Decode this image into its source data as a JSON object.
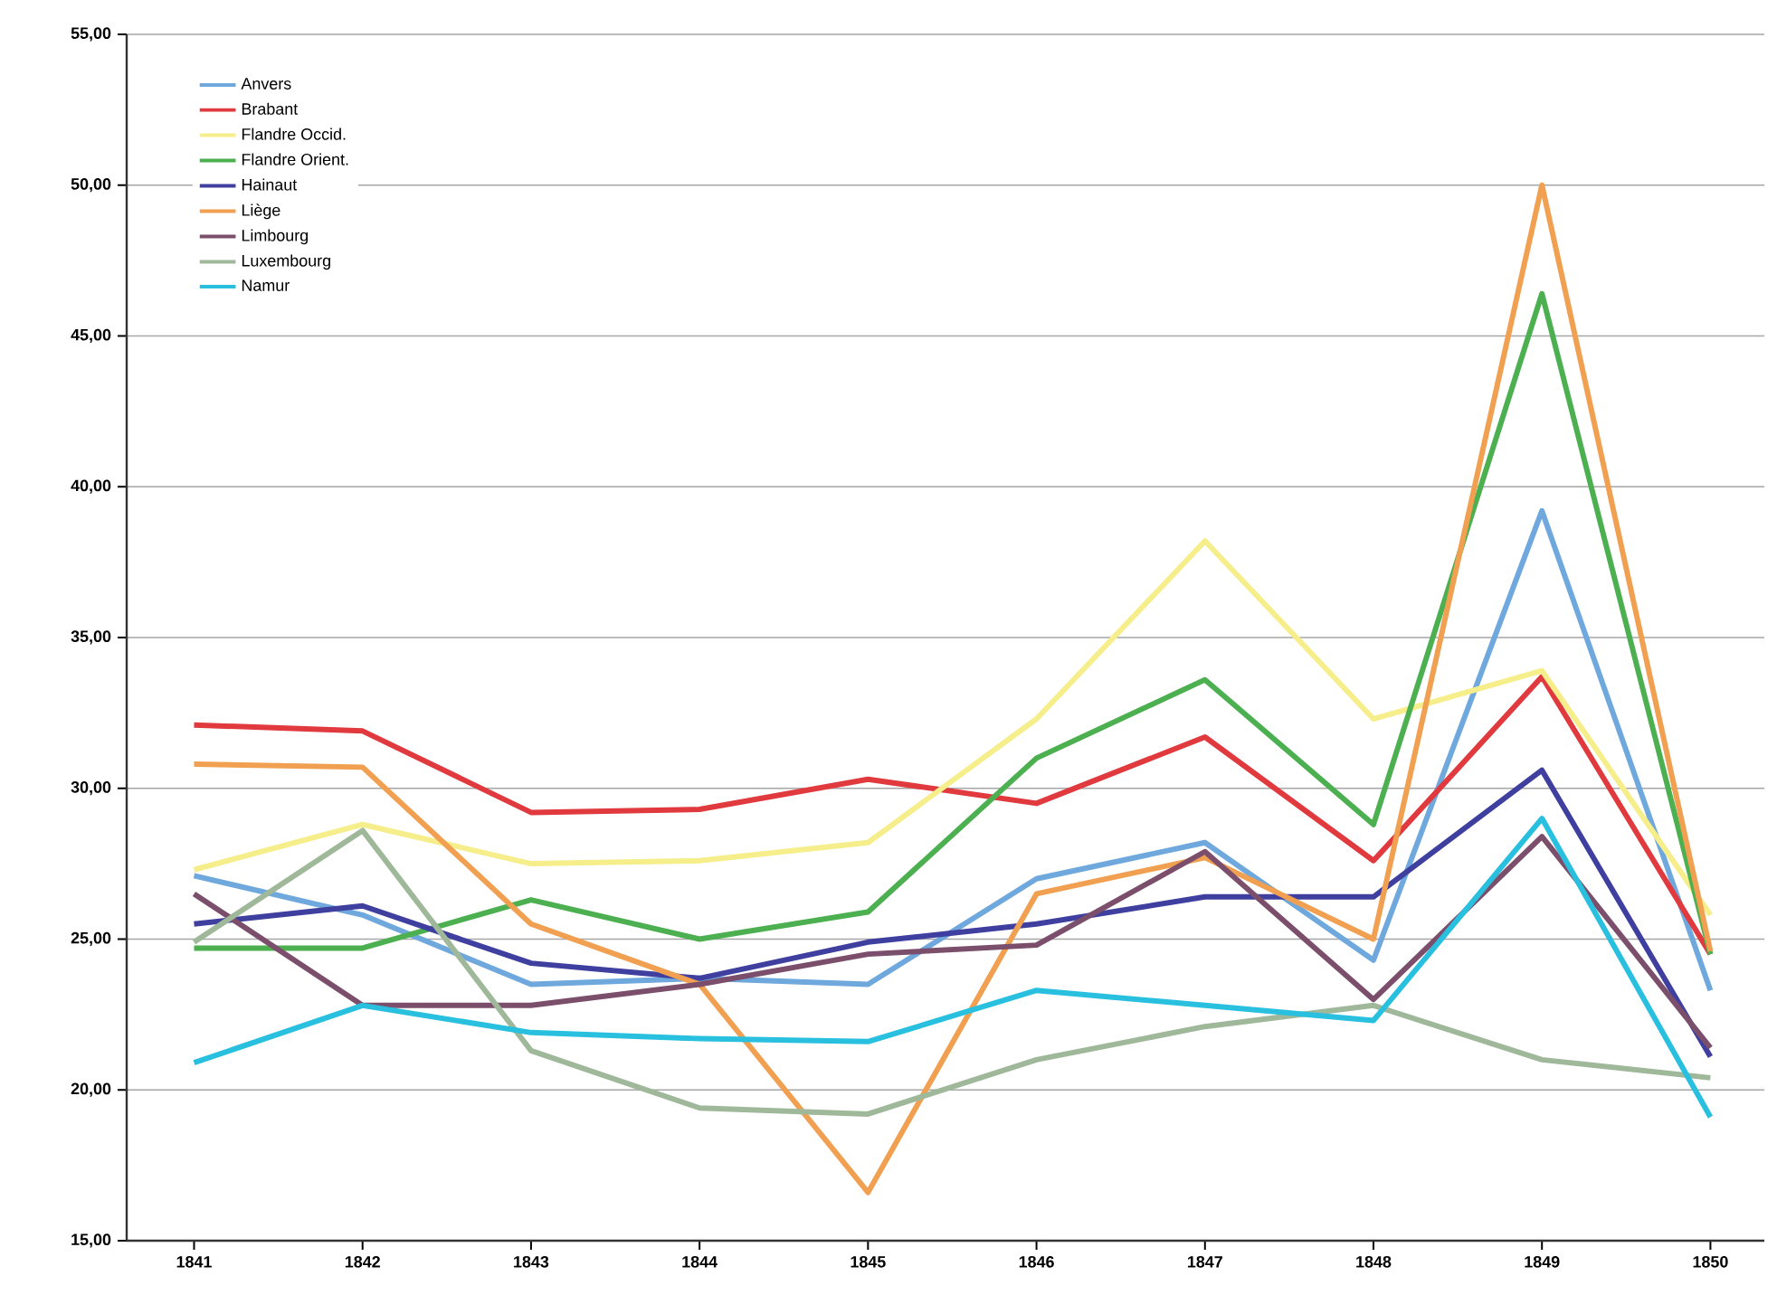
{
  "chart_data": {
    "type": "line",
    "categories": [
      "1841",
      "1842",
      "1843",
      "1844",
      "1845",
      "1846",
      "1847",
      "1848",
      "1849",
      "1850"
    ],
    "series": [
      {
        "name": "Anvers",
        "color": "#6fa8dc",
        "values": [
          27.1,
          25.8,
          23.5,
          23.7,
          23.5,
          27.0,
          28.2,
          24.3,
          39.2,
          23.3
        ]
      },
      {
        "name": "Brabant",
        "color": "#e0393e",
        "values": [
          32.1,
          31.9,
          29.2,
          29.3,
          30.3,
          29.5,
          31.7,
          27.6,
          33.7,
          24.5
        ]
      },
      {
        "name": "Flandre Occid.",
        "color": "#f5ee8a",
        "values": [
          27.3,
          28.8,
          27.5,
          27.6,
          28.2,
          32.3,
          38.2,
          32.3,
          33.9,
          25.8
        ]
      },
      {
        "name": "Flandre Orient.",
        "color": "#4caf50",
        "values": [
          24.7,
          24.7,
          26.3,
          25.0,
          25.9,
          31.0,
          33.6,
          28.8,
          46.4,
          24.5
        ]
      },
      {
        "name": "Hainaut",
        "color": "#3f3f9f",
        "values": [
          25.5,
          26.1,
          24.2,
          23.7,
          24.9,
          25.5,
          26.4,
          26.4,
          30.6,
          21.1
        ]
      },
      {
        "name": "Liège",
        "color": "#f0a050",
        "values": [
          30.8,
          30.7,
          25.5,
          23.5,
          16.6,
          26.5,
          27.7,
          25.0,
          50.0,
          24.6
        ]
      },
      {
        "name": "Limbourg",
        "color": "#7b4f6b",
        "values": [
          26.5,
          22.8,
          22.8,
          23.5,
          24.5,
          24.8,
          27.9,
          23.0,
          28.4,
          21.4
        ]
      },
      {
        "name": "Luxembourg",
        "color": "#9fb89a",
        "values": [
          24.9,
          28.6,
          21.3,
          19.4,
          19.2,
          21.0,
          22.1,
          22.8,
          21.0,
          20.4
        ]
      },
      {
        "name": "Namur",
        "color": "#29c0e0",
        "values": [
          20.9,
          22.8,
          21.9,
          21.7,
          21.6,
          23.3,
          22.8,
          22.3,
          29.0,
          19.1
        ]
      }
    ],
    "ylim": [
      15,
      55
    ],
    "yticks": [
      {
        "value": 15,
        "label": "15,00"
      },
      {
        "value": 20,
        "label": "20,00"
      },
      {
        "value": 25,
        "label": "25,00"
      },
      {
        "value": 30,
        "label": "30,00"
      },
      {
        "value": 35,
        "label": "35,00"
      },
      {
        "value": 40,
        "label": "40,00"
      },
      {
        "value": 45,
        "label": "45,00"
      },
      {
        "value": 50,
        "label": "50,00"
      },
      {
        "value": 55,
        "label": "55,00"
      }
    ],
    "grid": "y",
    "legend": "top left"
  }
}
